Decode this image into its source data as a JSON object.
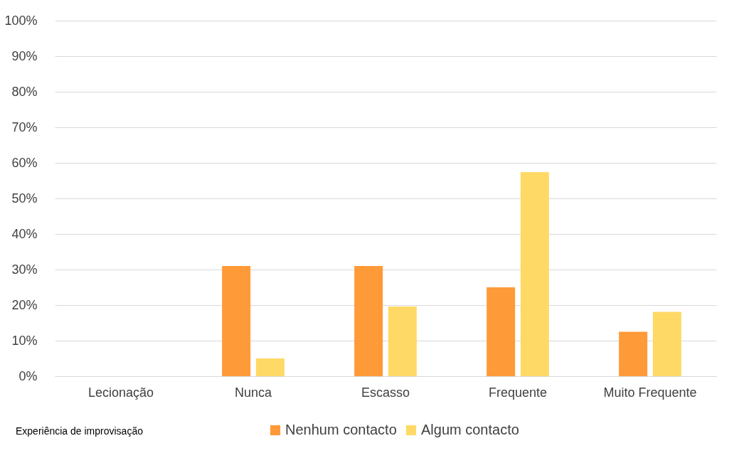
{
  "chart_data": {
    "type": "bar",
    "categories": [
      "Lecionação",
      "Nunca",
      "Escasso",
      "Frequente",
      "Muito Frequente"
    ],
    "series": [
      {
        "name": "Nenhum contacto",
        "color": "#ff9a38",
        "values": [
          null,
          31,
          31,
          25,
          12.5
        ]
      },
      {
        "name": "Algum contacto",
        "color": "#ffd966",
        "values": [
          null,
          5,
          19.6,
          57.4,
          18.1
        ]
      }
    ],
    "ylim": [
      0,
      100
    ],
    "yticks": [
      {
        "value": 0,
        "label": "0%"
      },
      {
        "value": 10,
        "label": "10%"
      },
      {
        "value": 20,
        "label": "20%"
      },
      {
        "value": 30,
        "label": "30%"
      },
      {
        "value": 40,
        "label": "40%"
      },
      {
        "value": 50,
        "label": "50%"
      },
      {
        "value": 60,
        "label": "60%"
      },
      {
        "value": 70,
        "label": "70%"
      },
      {
        "value": 80,
        "label": "80%"
      },
      {
        "value": 90,
        "label": "90%"
      },
      {
        "value": 100,
        "label": "100%"
      }
    ],
    "annotations": [
      "Experiência de improvisação"
    ],
    "grid": "y",
    "legend": "bottom"
  }
}
